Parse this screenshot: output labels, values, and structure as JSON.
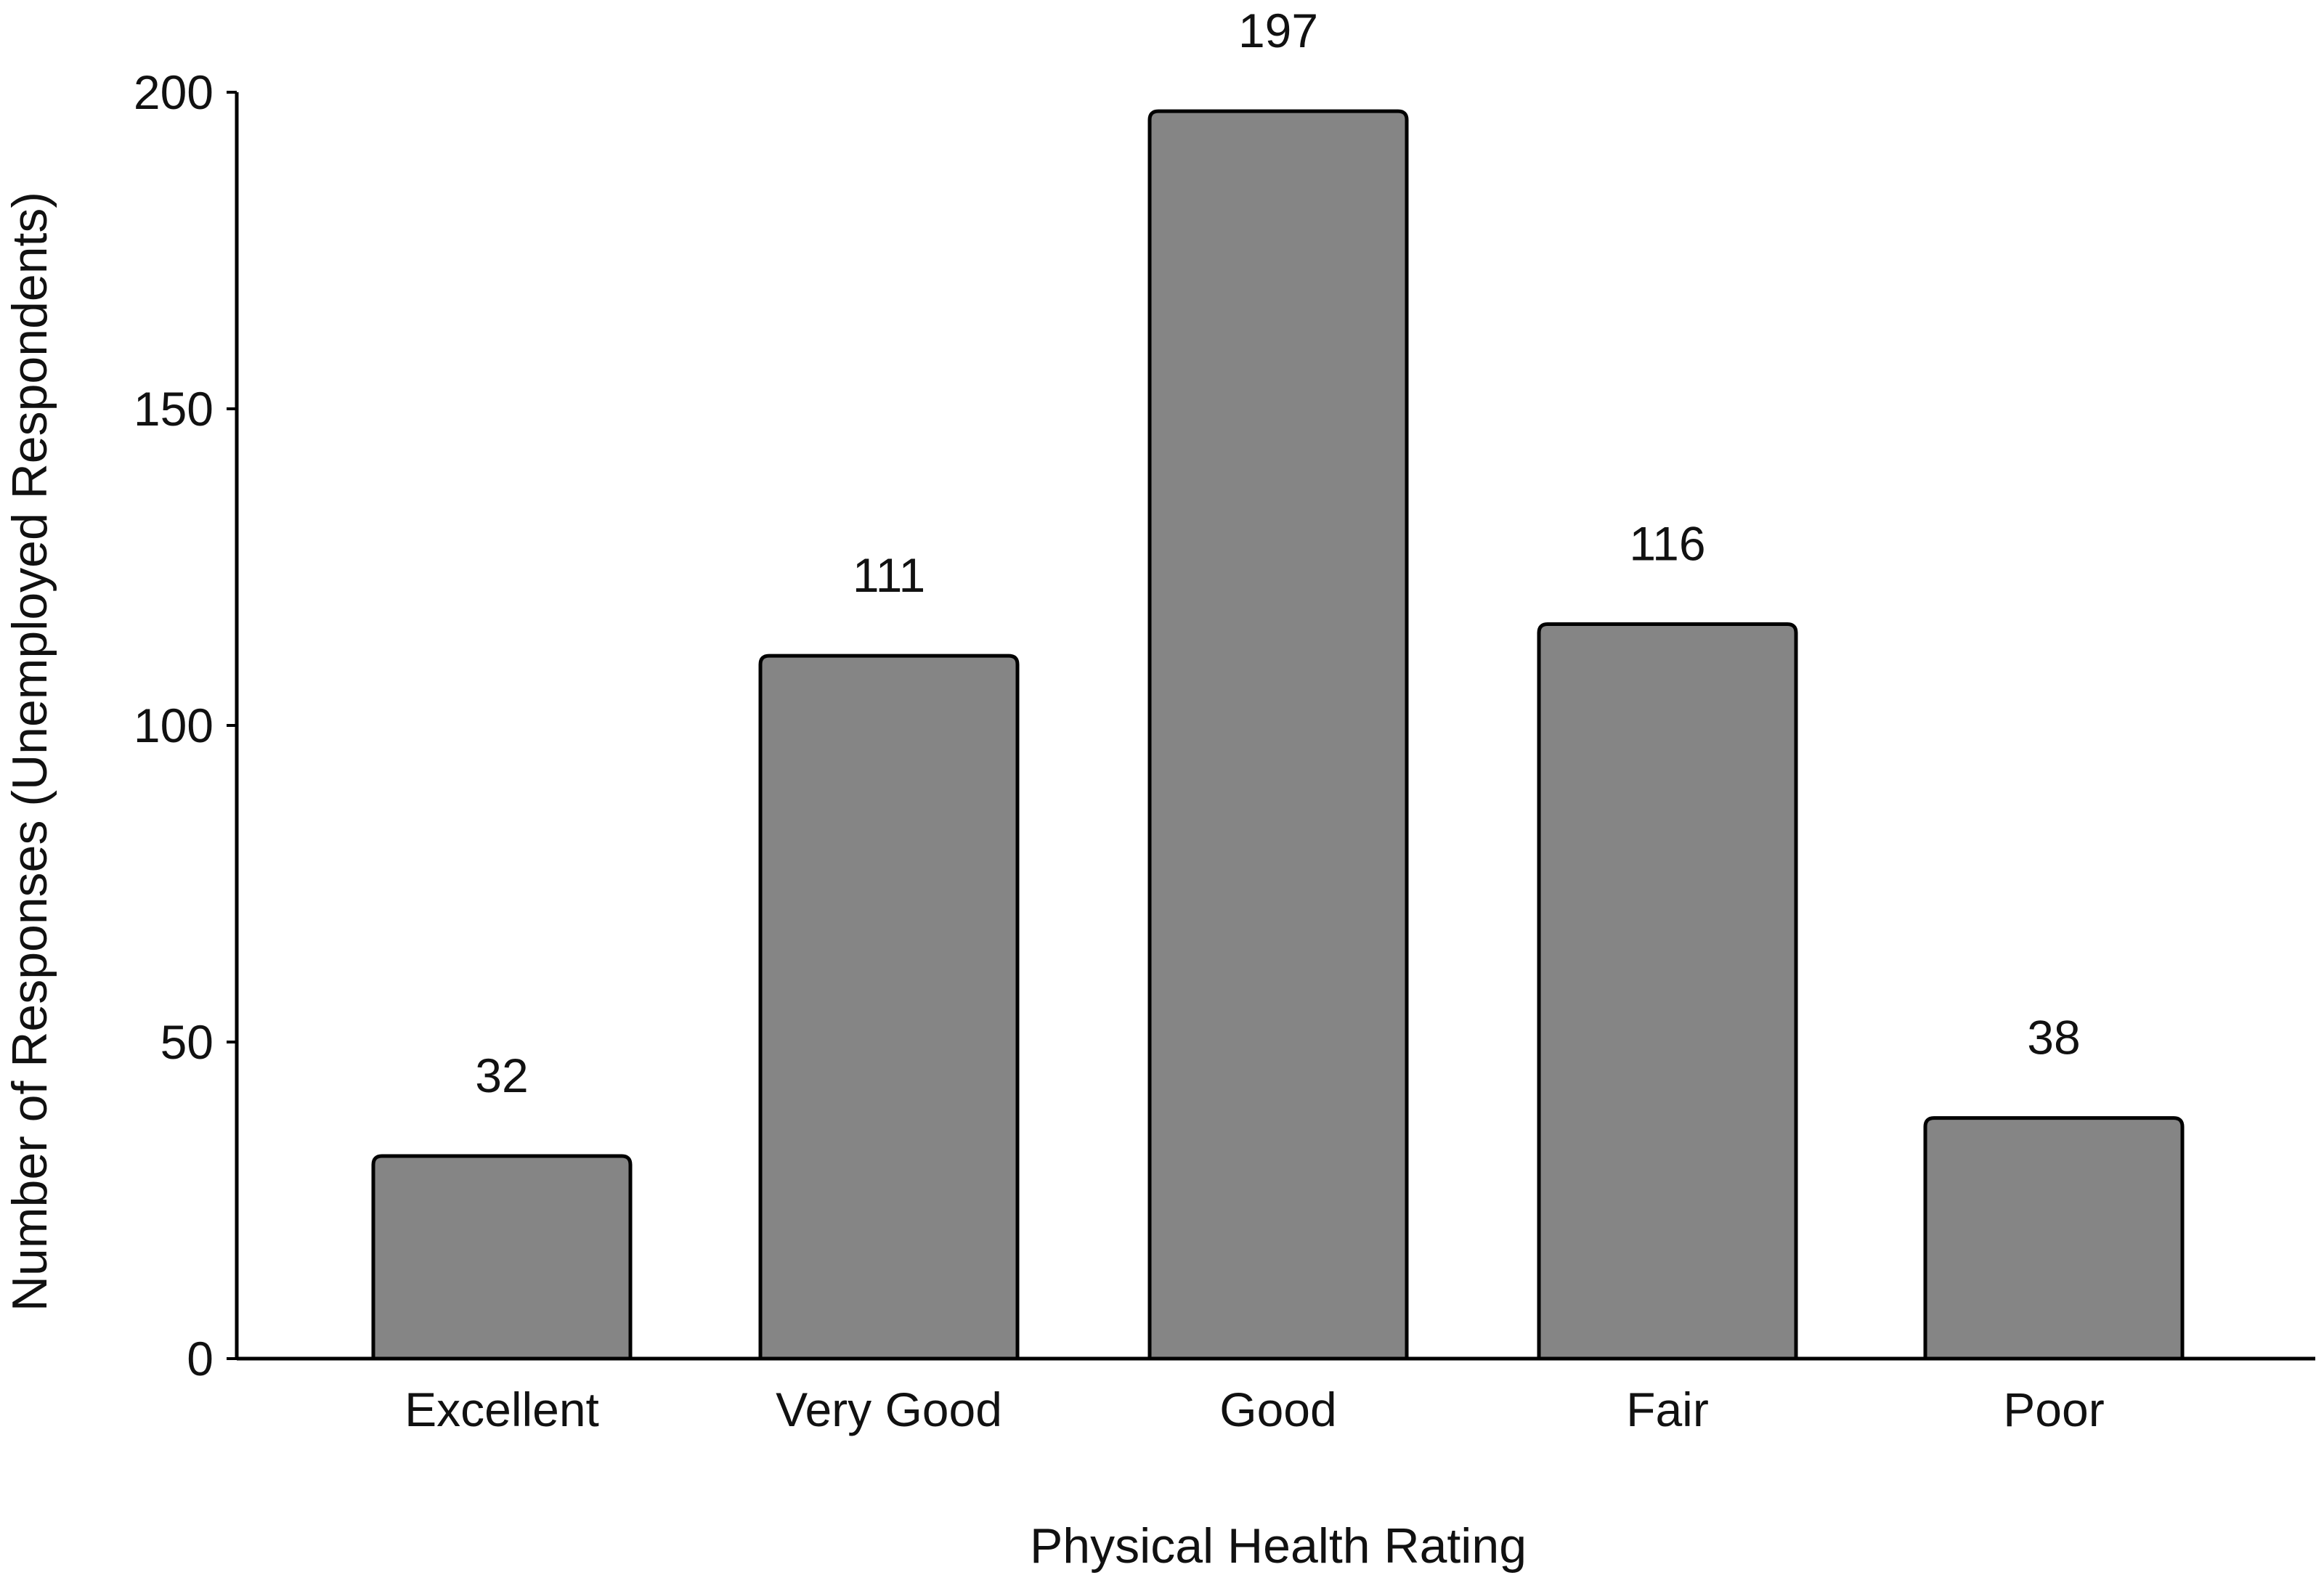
{
  "chart_data": {
    "type": "bar",
    "title": "",
    "xlabel": "Physical Health Rating",
    "ylabel": "Number of Responses (Unemployed Respondents)",
    "categories": [
      "Excellent",
      "Very Good",
      "Good",
      "Fair",
      "Poor"
    ],
    "values": [
      32,
      111,
      197,
      116,
      38
    ],
    "data_labels": [
      "32",
      "111",
      "197",
      "116",
      "38"
    ],
    "ylim": [
      0,
      200
    ],
    "yticks": [
      0,
      50,
      100,
      150,
      200
    ],
    "ytick_labels": [
      "0",
      "50",
      "100",
      "150",
      "200"
    ],
    "grid": false,
    "legend": "none",
    "bar_color": "#858585",
    "bar_edge_color": "#000000"
  }
}
